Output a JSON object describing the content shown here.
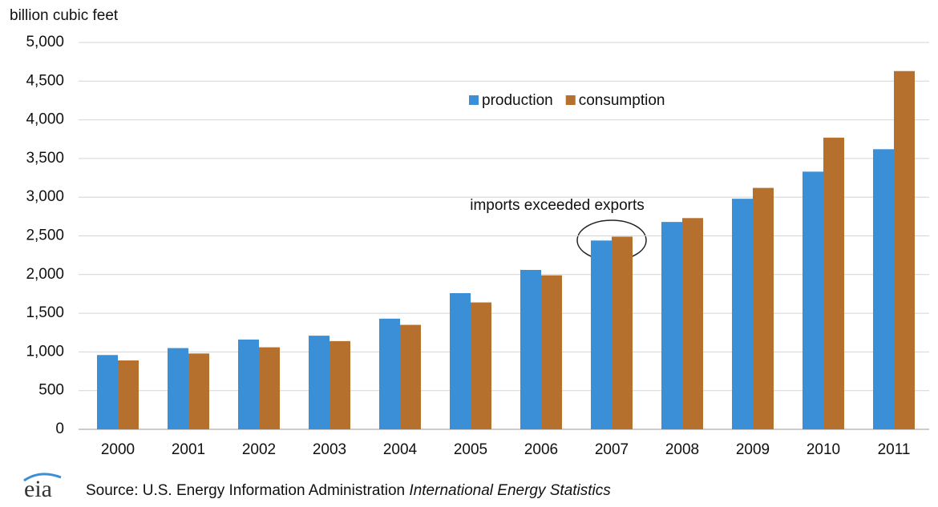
{
  "chart_data": {
    "type": "bar",
    "y_axis_label": "billion cubic feet",
    "categories": [
      "2000",
      "2001",
      "2002",
      "2003",
      "2004",
      "2005",
      "2006",
      "2007",
      "2008",
      "2009",
      "2010",
      "2011"
    ],
    "series": [
      {
        "name": "production",
        "color": "#3a8fd6",
        "values": [
          960,
          1050,
          1160,
          1210,
          1430,
          1760,
          2060,
          2440,
          2680,
          2980,
          3330,
          3620
        ]
      },
      {
        "name": "consumption",
        "color": "#b5702e",
        "values": [
          890,
          980,
          1060,
          1140,
          1350,
          1640,
          1990,
          2490,
          2730,
          3120,
          3770,
          4630
        ]
      }
    ],
    "ylim": [
      0,
      5000
    ],
    "yticks": [
      0,
      500,
      {
        "value": 1000,
        "label": "1,000"
      },
      {
        "value": 1500,
        "label": "1,500"
      },
      {
        "value": 2000,
        "label": "2,000"
      },
      {
        "value": 2500,
        "label": "2,500"
      },
      {
        "value": 3000,
        "label": "3,000"
      },
      {
        "value": 3500,
        "label": "3,500"
      },
      {
        "value": 4000,
        "label": "4,000"
      },
      {
        "value": 4500,
        "label": "4,500"
      },
      {
        "value": 5000,
        "label": "5,000"
      }
    ],
    "grid": true,
    "legend": "top",
    "annotation": "imports exceeded exports",
    "source": {
      "logo": "eia",
      "text": "Source: U.S. Energy Information Administration",
      "title": "International Energy Statistics"
    }
  }
}
